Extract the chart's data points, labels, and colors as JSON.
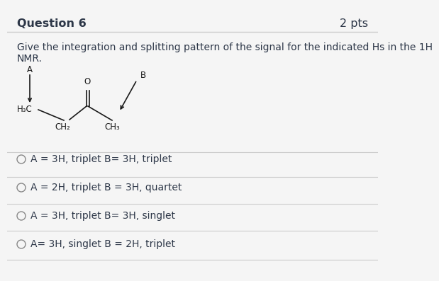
{
  "title": "Question 6",
  "pts": "2 pts",
  "question_text_line1": "Give the integration and splitting pattern of the signal for the indicated Hs in the 1H",
  "question_text_line2": "NMR.",
  "options": [
    "A = 3H, triplet B= 3H, triplet",
    "A = 2H, triplet B = 3H, quartet",
    "A = 3H, triplet B= 3H, singlet",
    "A= 3H, singlet B = 2H, triplet"
  ],
  "background_color": "#f5f5f5",
  "text_color": "#2d3748",
  "title_color": "#2d3748",
  "separator_color": "#cccccc",
  "title_fontsize": 11.5,
  "body_fontsize": 10,
  "option_fontsize": 10
}
